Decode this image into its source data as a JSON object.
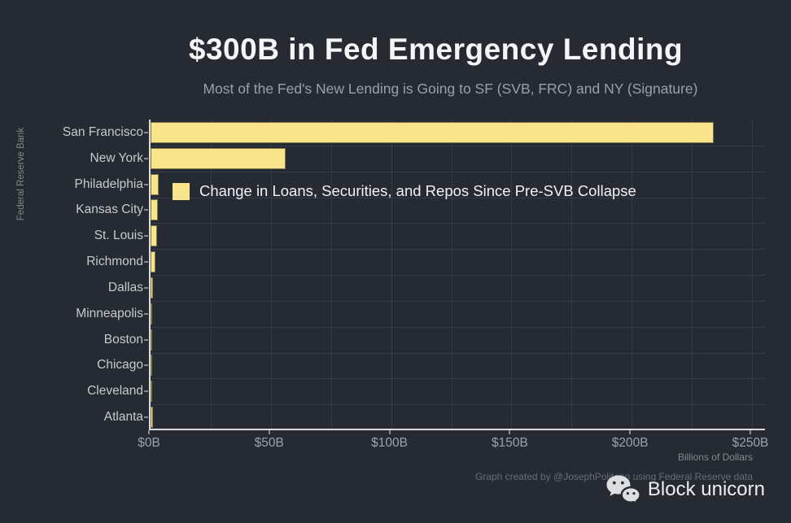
{
  "header": {
    "title": "$300B in Fed Emergency Lending",
    "subtitle": "Most of the Fed's New Lending is Going to SF (SVB, FRC) and NY (Signature)"
  },
  "chart_data": {
    "type": "bar",
    "orientation": "horizontal",
    "title": "$300B in Fed Emergency Lending",
    "subtitle": "Most of the Fed's New Lending is Going to SF (SVB, FRC) and NY (Signature)",
    "ylabel": "Federal Reserve Bank",
    "xlabel": "Billions of Dollars",
    "categories": [
      "San Francisco",
      "New York",
      "Philadelphia",
      "Kansas City",
      "St. Louis",
      "Richmond",
      "Dallas",
      "Minneapolis",
      "Boston",
      "Chicago",
      "Cleveland",
      "Atlanta"
    ],
    "values": [
      234,
      56,
      3.4,
      3.1,
      2.6,
      1.9,
      0.9,
      0.7,
      0.6,
      0.5,
      0.5,
      1.0
    ],
    "xlim": [
      0,
      250
    ],
    "x_ticks": [
      "$0B",
      "$50B",
      "$100B",
      "$150B",
      "$200B",
      "$250B"
    ],
    "x_tick_values": [
      0,
      50,
      100,
      150,
      200,
      250
    ],
    "grid_interval": 25,
    "grid": "on",
    "legend": {
      "label": "Change in Loans, Securities, and Repos Since Pre-SVB Collapse",
      "position": "inside-top-left"
    }
  },
  "footer": {
    "attribution": "Graph created by @JosephPolitano using Federal Reserve data",
    "brand": "Block unicorn"
  },
  "icons": {
    "wechat": "wechat-logo"
  },
  "colors": {
    "background": "#252a33",
    "bar": "#fae48b",
    "axis": "#d9dbdf",
    "grid": "#363c47",
    "title": "#f4f5f7",
    "subtitle": "#99a0a9",
    "category_label": "#c6cad1",
    "tick_label": "#9aa2ab",
    "muted_label": "#84898f",
    "attribution": "#676d76",
    "brand": "#eceef0"
  }
}
